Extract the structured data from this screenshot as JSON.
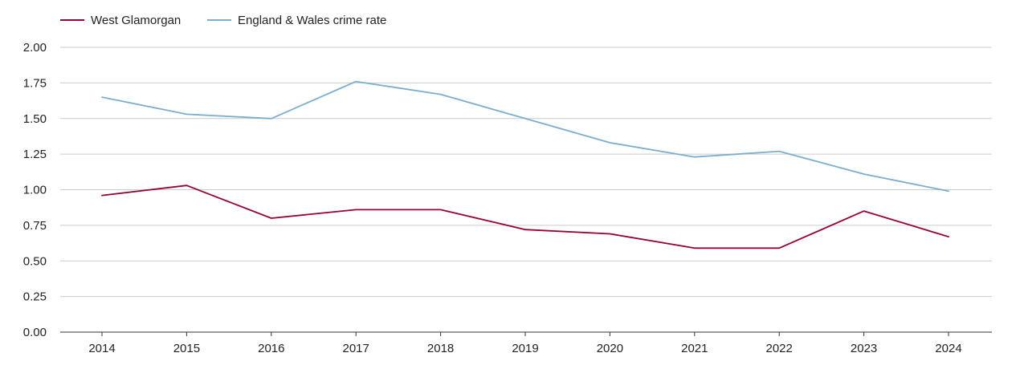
{
  "chart_data": {
    "type": "line",
    "title": "",
    "xlabel": "",
    "ylabel": "",
    "x": [
      "2014",
      "2015",
      "2016",
      "2017",
      "2018",
      "2019",
      "2020",
      "2021",
      "2022",
      "2023",
      "2024"
    ],
    "yticks": [
      "0.00",
      "0.25",
      "0.50",
      "0.75",
      "1.00",
      "1.25",
      "1.50",
      "1.75",
      "2.00"
    ],
    "ylim": [
      0,
      2
    ],
    "grid": true,
    "legend_position": "top-left",
    "series": [
      {
        "name": "West Glamorgan",
        "color": "#990033",
        "values": [
          0.96,
          1.03,
          0.8,
          0.86,
          0.86,
          0.72,
          0.69,
          0.59,
          0.59,
          0.85,
          0.67
        ]
      },
      {
        "name": "England & Wales crime rate",
        "color": "#7aaed0",
        "values": [
          1.65,
          1.53,
          1.5,
          1.76,
          1.67,
          1.5,
          1.33,
          1.23,
          1.27,
          1.11,
          0.99
        ]
      }
    ]
  }
}
